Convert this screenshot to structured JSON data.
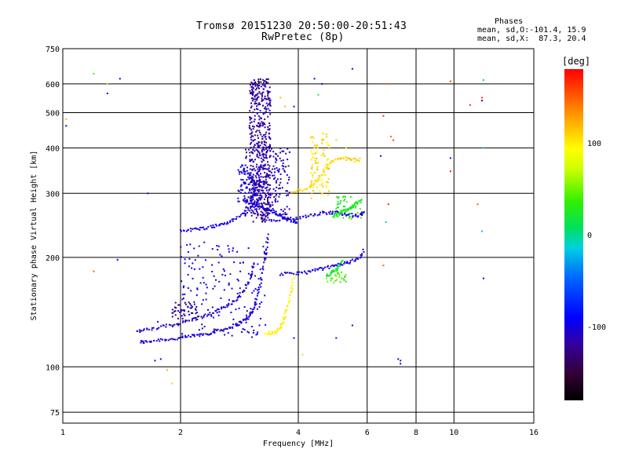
{
  "chart_data": {
    "type": "scatter",
    "title": "Tromsø 20151230 20:50:00-20:51:43",
    "subtitle": "RwPretec (8p)",
    "xlabel": "Frequency [MHz]",
    "ylabel": "Stationary phase Virtual Height [km]",
    "xscale": "log",
    "yscale": "log",
    "xlim": [
      1,
      16
    ],
    "ylim": [
      70,
      750
    ],
    "x_ticks": [
      1,
      2,
      4,
      6,
      8,
      10,
      16
    ],
    "x_tick_labels": [
      "1",
      "2",
      "4",
      "6",
      "8",
      "10",
      "16"
    ],
    "y_ticks": [
      75,
      100,
      200,
      300,
      400,
      500,
      600,
      750
    ],
    "y_tick_labels": [
      "75",
      "100",
      "200",
      "300",
      "400",
      "500",
      "600",
      "750"
    ],
    "grid": true,
    "phases_box": {
      "heading": "Phases",
      "line_o": "mean, sd,O:-101.4, 15.9",
      "line_x": "mean, sd,X:  87.3, 20.4"
    },
    "colorbar": {
      "label": "[deg]",
      "range": [
        -180,
        180
      ],
      "ticks": [
        100,
        0,
        -100
      ],
      "tick_labels": [
        "100",
        "0",
        "-100"
      ]
    },
    "traces": [
      {
        "phase": -105,
        "points": [
          [
            1.58,
            117
          ],
          [
            1.62,
            117
          ],
          [
            1.7,
            118
          ],
          [
            1.8,
            119
          ],
          [
            1.9,
            119
          ],
          [
            2.0,
            120
          ],
          [
            2.1,
            121
          ],
          [
            2.2,
            122
          ],
          [
            2.3,
            123
          ],
          [
            2.4,
            124
          ],
          [
            2.5,
            126
          ],
          [
            2.6,
            127
          ],
          [
            2.7,
            129
          ],
          [
            2.8,
            131
          ],
          [
            2.9,
            134
          ],
          [
            3.0,
            137
          ],
          [
            3.05,
            142
          ],
          [
            3.1,
            150
          ],
          [
            3.15,
            160
          ],
          [
            3.2,
            170
          ],
          [
            3.25,
            185
          ],
          [
            3.3,
            200
          ],
          [
            3.32,
            215
          ],
          [
            3.35,
            235
          ]
        ]
      },
      {
        "phase": -110,
        "points": [
          [
            1.55,
            125
          ],
          [
            1.6,
            126
          ],
          [
            1.7,
            127
          ],
          [
            1.8,
            129
          ],
          [
            1.9,
            130
          ],
          [
            2.0,
            132
          ],
          [
            2.1,
            134
          ],
          [
            2.2,
            136
          ],
          [
            2.3,
            138
          ],
          [
            2.4,
            140
          ],
          [
            2.5,
            143
          ],
          [
            2.6,
            146
          ],
          [
            2.7,
            150
          ],
          [
            2.8,
            155
          ],
          [
            2.9,
            162
          ],
          [
            3.0,
            172
          ],
          [
            3.05,
            182
          ],
          [
            3.1,
            195
          ]
        ]
      },
      {
        "phase": -100,
        "points": [
          [
            2.0,
            237
          ],
          [
            2.1,
            238
          ],
          [
            2.2,
            239
          ],
          [
            2.3,
            241
          ],
          [
            2.4,
            243
          ],
          [
            2.5,
            245
          ],
          [
            2.6,
            248
          ],
          [
            2.7,
            252
          ],
          [
            2.8,
            257
          ],
          [
            2.9,
            264
          ],
          [
            3.0,
            272
          ],
          [
            3.05,
            290
          ],
          [
            3.1,
            310
          ],
          [
            3.15,
            330
          ]
        ]
      },
      {
        "phase": -95,
        "points": [
          [
            3.2,
            275
          ],
          [
            3.3,
            272
          ],
          [
            3.4,
            268
          ],
          [
            3.5,
            264
          ],
          [
            3.6,
            260
          ],
          [
            3.7,
            256
          ],
          [
            3.8,
            253
          ],
          [
            3.9,
            250
          ],
          [
            4.0,
            248
          ]
        ]
      },
      {
        "phase": -105,
        "points": [
          [
            3.4,
            252
          ],
          [
            3.6,
            253
          ],
          [
            3.8,
            255
          ],
          [
            4.0,
            257
          ],
          [
            4.2,
            260
          ],
          [
            4.4,
            263
          ],
          [
            4.6,
            265
          ],
          [
            4.8,
            265
          ],
          [
            5.0,
            266
          ],
          [
            5.2,
            264
          ],
          [
            5.4,
            262
          ],
          [
            5.6,
            260
          ],
          [
            5.8,
            262
          ],
          [
            5.9,
            268
          ]
        ]
      },
      {
        "phase": -100,
        "points": [
          [
            3.6,
            180
          ],
          [
            3.8,
            180
          ],
          [
            4.0,
            181
          ],
          [
            4.2,
            182
          ],
          [
            4.4,
            184
          ],
          [
            4.6,
            186
          ],
          [
            4.8,
            188
          ],
          [
            5.0,
            190
          ],
          [
            5.2,
            192
          ],
          [
            5.4,
            194
          ],
          [
            5.6,
            197
          ],
          [
            5.8,
            202
          ],
          [
            5.9,
            210
          ]
        ]
      },
      {
        "phase": 100,
        "points": [
          [
            3.3,
            123
          ],
          [
            3.4,
            124
          ],
          [
            3.5,
            125
          ],
          [
            3.6,
            128
          ],
          [
            3.65,
            132
          ],
          [
            3.7,
            138
          ],
          [
            3.75,
            145
          ],
          [
            3.8,
            155
          ],
          [
            3.85,
            165
          ],
          [
            3.9,
            180
          ]
        ]
      },
      {
        "phase": 20,
        "points": [
          [
            4.7,
            178
          ],
          [
            4.8,
            180
          ],
          [
            4.9,
            182
          ],
          [
            5.0,
            185
          ],
          [
            5.1,
            190
          ],
          [
            5.2,
            195
          ]
        ]
      },
      {
        "phase": 25,
        "points": [
          [
            4.9,
            260
          ],
          [
            5.0,
            262
          ],
          [
            5.1,
            265
          ],
          [
            5.2,
            268
          ],
          [
            5.3,
            270
          ],
          [
            5.4,
            273
          ],
          [
            5.5,
            276
          ],
          [
            5.6,
            280
          ],
          [
            5.7,
            284
          ],
          [
            5.8,
            287
          ]
        ]
      },
      {
        "phase": 110,
        "points": [
          [
            3.8,
            300
          ],
          [
            4.0,
            305
          ],
          [
            4.2,
            310
          ],
          [
            4.4,
            320
          ],
          [
            4.6,
            340
          ],
          [
            4.8,
            360
          ],
          [
            5.0,
            375
          ],
          [
            5.2,
            375
          ],
          [
            5.4,
            372
          ],
          [
            5.6,
            370
          ],
          [
            5.8,
            372
          ]
        ]
      }
    ],
    "clusters": [
      {
        "phase": -120,
        "x": [
          3.0,
          3.4
        ],
        "y": [
          250,
          620
        ],
        "n": 520
      },
      {
        "phase": -110,
        "x": [
          2.9,
          3.8
        ],
        "y": [
          260,
          400
        ],
        "n": 220
      },
      {
        "phase": -100,
        "x": [
          2.8,
          3.1
        ],
        "y": [
          280,
          360
        ],
        "n": 70
      },
      {
        "phase": -100,
        "x": [
          2.0,
          3.3
        ],
        "y": [
          120,
          220
        ],
        "n": 170
      },
      {
        "phase": -125,
        "x": [
          1.9,
          2.2
        ],
        "y": [
          135,
          152
        ],
        "n": 35
      },
      {
        "phase": 105,
        "x": [
          4.3,
          4.8
        ],
        "y": [
          290,
          440
        ],
        "n": 90
      },
      {
        "phase": 30,
        "x": [
          5.0,
          5.8
        ],
        "y": [
          255,
          295
        ],
        "n": 40
      },
      {
        "phase": 40,
        "x": [
          4.7,
          5.3
        ],
        "y": [
          170,
          185
        ],
        "n": 30
      }
    ],
    "scatter_points": [
      {
        "x": 1.2,
        "y": 640,
        "phase": 40
      },
      {
        "x": 1.3,
        "y": 600,
        "phase": 110
      },
      {
        "x": 1.3,
        "y": 565,
        "phase": -110
      },
      {
        "x": 1.4,
        "y": 620,
        "phase": -100
      },
      {
        "x": 1.02,
        "y": 480,
        "phase": 120
      },
      {
        "x": 1.02,
        "y": 460,
        "phase": -100
      },
      {
        "x": 1.65,
        "y": 300,
        "phase": -110
      },
      {
        "x": 1.38,
        "y": 197,
        "phase": -90
      },
      {
        "x": 1.2,
        "y": 183,
        "phase": 150
      },
      {
        "x": 1.75,
        "y": 133,
        "phase": -120
      },
      {
        "x": 1.72,
        "y": 104,
        "phase": -110
      },
      {
        "x": 1.78,
        "y": 105,
        "phase": -100
      },
      {
        "x": 1.9,
        "y": 90,
        "phase": 110
      },
      {
        "x": 1.85,
        "y": 98,
        "phase": 120
      },
      {
        "x": 2.0,
        "y": 210,
        "phase": 150
      },
      {
        "x": 2.3,
        "y": 220,
        "phase": -120
      },
      {
        "x": 3.6,
        "y": 550,
        "phase": 120
      },
      {
        "x": 3.9,
        "y": 520,
        "phase": -100
      },
      {
        "x": 4.4,
        "y": 620,
        "phase": -100
      },
      {
        "x": 4.6,
        "y": 600,
        "phase": -110
      },
      {
        "x": 4.5,
        "y": 560,
        "phase": 20
      },
      {
        "x": 5.0,
        "y": 420,
        "phase": 110
      },
      {
        "x": 5.3,
        "y": 400,
        "phase": 110
      },
      {
        "x": 5.5,
        "y": 660,
        "phase": -100
      },
      {
        "x": 6.5,
        "y": 380,
        "phase": -110
      },
      {
        "x": 6.6,
        "y": 490,
        "phase": 170
      },
      {
        "x": 6.8,
        "y": 600,
        "phase": 150
      },
      {
        "x": 6.9,
        "y": 430,
        "phase": 150
      },
      {
        "x": 7.0,
        "y": 420,
        "phase": 160
      },
      {
        "x": 6.8,
        "y": 280,
        "phase": 170
      },
      {
        "x": 6.7,
        "y": 250,
        "phase": 10
      },
      {
        "x": 6.6,
        "y": 190,
        "phase": 150
      },
      {
        "x": 7.2,
        "y": 105,
        "phase": -100
      },
      {
        "x": 7.3,
        "y": 104,
        "phase": -110
      },
      {
        "x": 7.3,
        "y": 102,
        "phase": -90
      },
      {
        "x": 9.8,
        "y": 610,
        "phase": 160
      },
      {
        "x": 9.8,
        "y": 375,
        "phase": -80
      },
      {
        "x": 9.8,
        "y": 345,
        "phase": 170
      },
      {
        "x": 11.0,
        "y": 525,
        "phase": 170
      },
      {
        "x": 11.8,
        "y": 550,
        "phase": 160
      },
      {
        "x": 11.8,
        "y": 540,
        "phase": -120
      },
      {
        "x": 11.9,
        "y": 615,
        "phase": -20
      },
      {
        "x": 11.9,
        "y": 400,
        "phase": -20
      },
      {
        "x": 11.5,
        "y": 280,
        "phase": 150
      },
      {
        "x": 11.8,
        "y": 236,
        "phase": -20
      },
      {
        "x": 11.9,
        "y": 175,
        "phase": -100
      },
      {
        "x": 3.7,
        "y": 520,
        "phase": 120
      },
      {
        "x": 4.1,
        "y": 108,
        "phase": 110
      },
      {
        "x": 3.9,
        "y": 120,
        "phase": -100
      },
      {
        "x": 5.5,
        "y": 130,
        "phase": -100
      },
      {
        "x": 5.0,
        "y": 120,
        "phase": -110
      }
    ]
  }
}
